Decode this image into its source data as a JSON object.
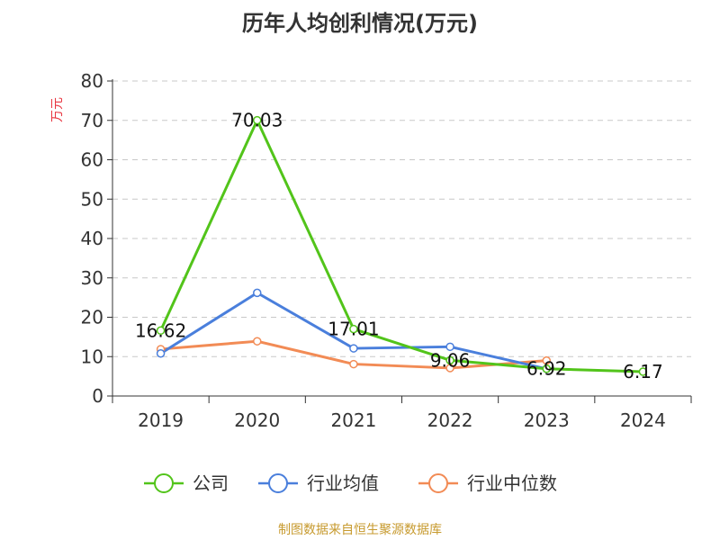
{
  "chart_data": {
    "type": "line",
    "title": "历年人均创利情况(万元)",
    "ylabel": "万元",
    "ylim": [
      0,
      80
    ],
    "yticks": [
      0,
      10,
      20,
      30,
      40,
      50,
      60,
      70,
      80
    ],
    "grid": true,
    "legend_position": "bottom",
    "categories": [
      "2019",
      "2020",
      "2021",
      "2022",
      "2023",
      "2024"
    ],
    "series": [
      {
        "name": "公司",
        "color": "#52c41a",
        "values": [
          16.62,
          70.03,
          17.01,
          9.06,
          6.92,
          6.17
        ],
        "labels": [
          "16.62",
          "70.03",
          "17.01",
          "9.06",
          "6.92",
          "6.17"
        ]
      },
      {
        "name": "行业均值",
        "color": "#4a7fdc",
        "values": [
          10.8,
          26.2,
          12.1,
          12.5,
          6.9,
          null
        ]
      },
      {
        "name": "行业中位数",
        "color": "#f28b55",
        "values": [
          11.9,
          13.9,
          8.1,
          7.1,
          9.0,
          null
        ]
      }
    ]
  },
  "footer": {
    "source": "制图数据来自恒生聚源数据库"
  }
}
